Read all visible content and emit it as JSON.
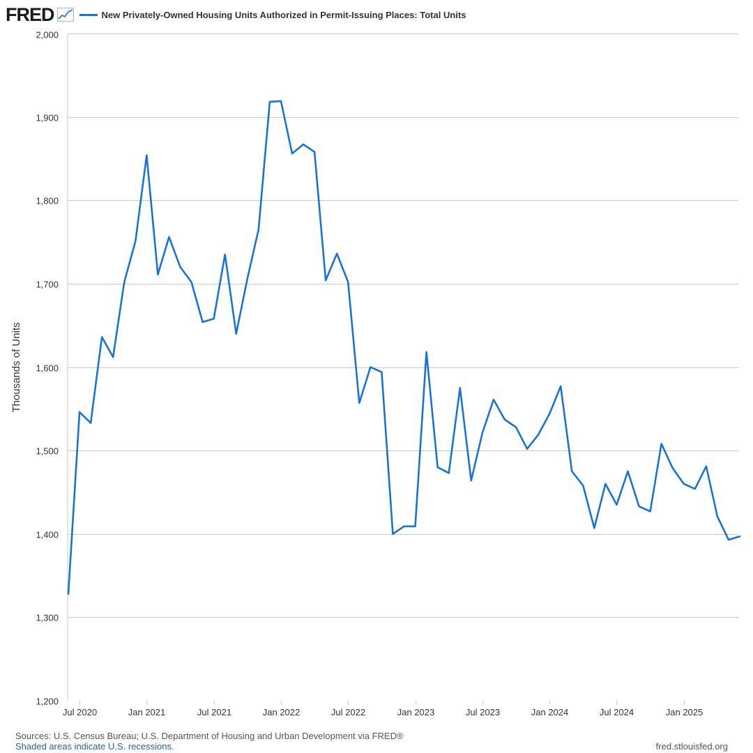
{
  "header": {
    "logo_text": "FRED",
    "logo_icon": "line-chart-icon",
    "legend_label": "New Privately-Owned Housing Units Authorized in Permit-Issuing Places: Total Units"
  },
  "footer": {
    "sources": "Sources: U.S. Census Bureau; U.S. Department of Housing and Urban Development via FRED®",
    "recessions_note": "Shaded areas indicate U.S. recessions.",
    "site": "fred.stlouisfed.org"
  },
  "colors": {
    "series": "#1a73d4",
    "grid": "#c8c8c8",
    "text": "#333333"
  },
  "chart_data": {
    "type": "line",
    "title": "New Privately-Owned Housing Units Authorized in Permit-Issuing Places: Total Units",
    "xlabel": "",
    "ylabel": "Thousands of Units",
    "ylim": [
      1200,
      2000
    ],
    "yticks": [
      1200,
      1300,
      1400,
      1500,
      1600,
      1700,
      1800,
      1900,
      2000
    ],
    "ytick_labels": [
      "1,200",
      "1,300",
      "1,400",
      "1,500",
      "1,600",
      "1,700",
      "1,800",
      "1,900",
      "2,000"
    ],
    "xticks": [
      {
        "index": 1,
        "label": "Jul 2020"
      },
      {
        "index": 7,
        "label": "Jan 2021"
      },
      {
        "index": 13,
        "label": "Jul 2021"
      },
      {
        "index": 19,
        "label": "Jan 2022"
      },
      {
        "index": 25,
        "label": "Jul 2022"
      },
      {
        "index": 31,
        "label": "Jan 2023"
      },
      {
        "index": 37,
        "label": "Jul 2023"
      },
      {
        "index": 43,
        "label": "Jan 2024"
      },
      {
        "index": 49,
        "label": "Jul 2024"
      },
      {
        "index": 55,
        "label": "Jan 2025"
      }
    ],
    "x_start": "Jun 2020",
    "x_end": "Jun 2025",
    "grid": true,
    "series": [
      {
        "name": "New Privately-Owned Housing Units Authorized in Permit-Issuing Places: Total Units",
        "values": [
          1328,
          1546,
          1533,
          1636,
          1612,
          1702,
          1751,
          1854,
          1711,
          1756,
          1720,
          1702,
          1654,
          1658,
          1735,
          1640,
          1706,
          1765,
          1918,
          1919,
          1856,
          1867,
          1858,
          1704,
          1736,
          1702,
          1557,
          1600,
          1594,
          1400,
          1409,
          1409,
          1618,
          1480,
          1473,
          1575,
          1464,
          1521,
          1561,
          1537,
          1528,
          1502,
          1519,
          1544,
          1577,
          1475,
          1458,
          1407,
          1460,
          1435,
          1475,
          1433,
          1427,
          1508,
          1479,
          1460,
          1454,
          1481,
          1421,
          1393,
          1397
        ]
      }
    ]
  }
}
